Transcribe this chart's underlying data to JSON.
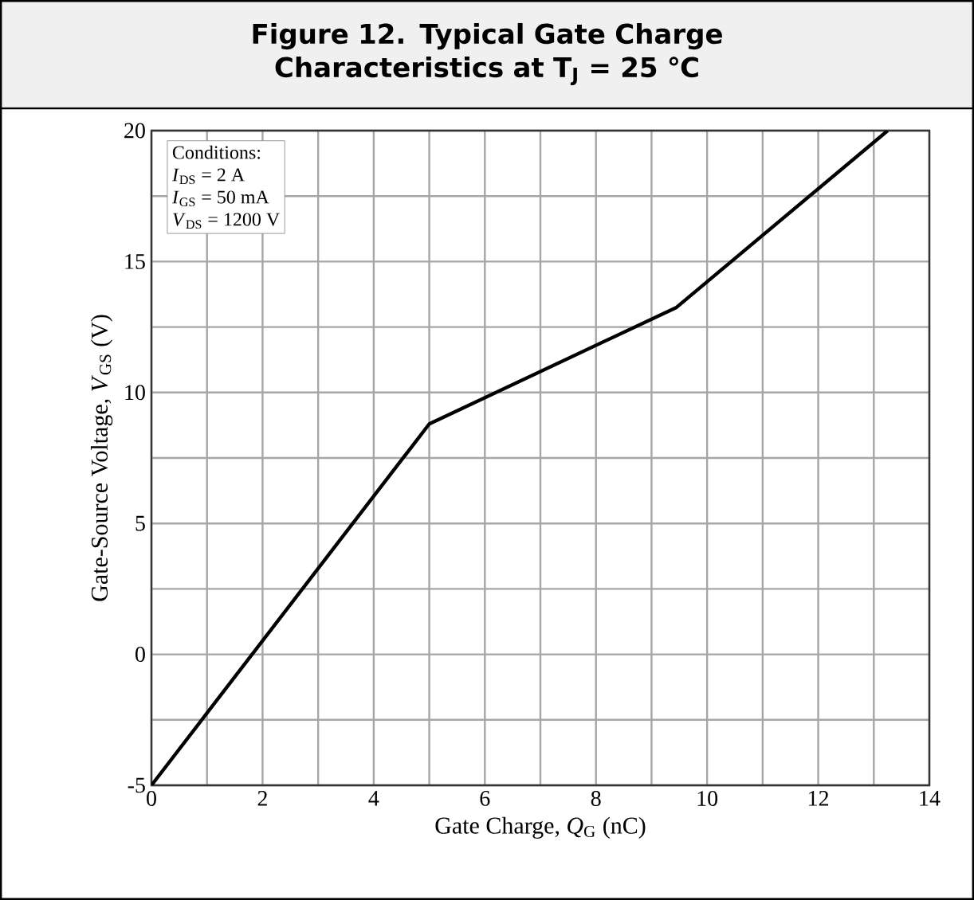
{
  "chart_data": {
    "type": "line",
    "title": "Figure 12.  Typical Gate Charge Characteristics at T$_{J}$ = 25 ℃",
    "xlabel": "Gate Charge, *Q*$_{G}$ (nC)",
    "ylabel": "Gate-Source Voltage, *V*$_{GS}$ (V)",
    "annotations": [
      "Conditions:",
      "*I*$_{DS}$ = 2 A",
      "*I*$_{GS}$ = 50 mA",
      "*V*$_{DS}$ = 1200 V"
    ],
    "x": [
      0,
      5.0,
      9.45,
      13.25
    ],
    "series": [
      {
        "color": "#000000",
        "values": [
          -5,
          8.8,
          13.25,
          20
        ]
      }
    ],
    "xlim": [
      0,
      14
    ],
    "ylim": [
      -5,
      20
    ],
    "xticks": [
      0,
      {
        "value": 1,
        "label": null
      },
      2,
      {
        "value": 3,
        "label": null
      },
      4,
      {
        "value": 5,
        "label": null
      },
      6,
      {
        "value": 7,
        "label": null
      },
      8,
      {
        "value": 9,
        "label": null
      },
      10,
      {
        "value": 11,
        "label": null
      },
      12,
      {
        "value": 13,
        "label": null
      },
      14
    ],
    "yticks": [
      -5,
      {
        "value": -2.5,
        "label": null
      },
      0,
      {
        "value": 2.5,
        "label": null
      },
      5,
      {
        "value": 7.5,
        "label": null
      },
      10,
      {
        "value": 12.5,
        "label": null
      },
      15,
      {
        "value": 17.5,
        "label": null
      },
      20
    ],
    "grid": true,
    "marker": "none",
    "line_style": "solid"
  }
}
